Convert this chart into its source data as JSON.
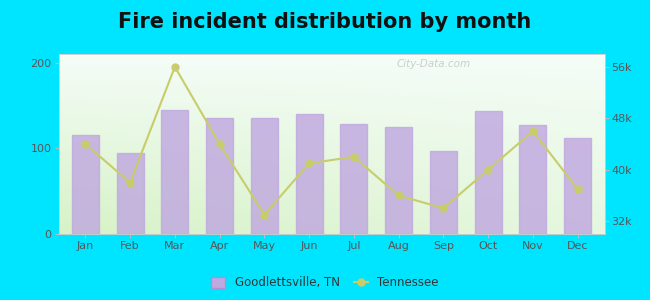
{
  "title": "Fire incident distribution by month",
  "months": [
    "Jan",
    "Feb",
    "Mar",
    "Apr",
    "May",
    "Jun",
    "Jul",
    "Aug",
    "Sep",
    "Oct",
    "Nov",
    "Dec"
  ],
  "bar_values": [
    115,
    95,
    145,
    135,
    135,
    140,
    128,
    125,
    97,
    143,
    127,
    112
  ],
  "line_values": [
    44,
    38,
    56,
    44,
    33,
    41,
    42,
    36,
    34,
    40,
    46,
    37
  ],
  "bar_color": "#c0a8e0",
  "line_color": "#c8cc6a",
  "outer_bg": "#00e5ff",
  "plot_bg_left": "#d8f0c8",
  "plot_bg_right": "#f0f8f8",
  "ylim_left": [
    0,
    210
  ],
  "ylim_right": [
    30,
    58
  ],
  "yticks_left": [
    0,
    100,
    200
  ],
  "yticks_right": [
    32,
    40,
    48,
    56
  ],
  "ytick_labels_right": [
    "32k",
    "40k",
    "48k",
    "56k"
  ],
  "title_fontsize": 15,
  "legend_label_bar": "Goodlettsville, TN",
  "legend_label_line": "Tennessee",
  "watermark": "City-Data.com"
}
